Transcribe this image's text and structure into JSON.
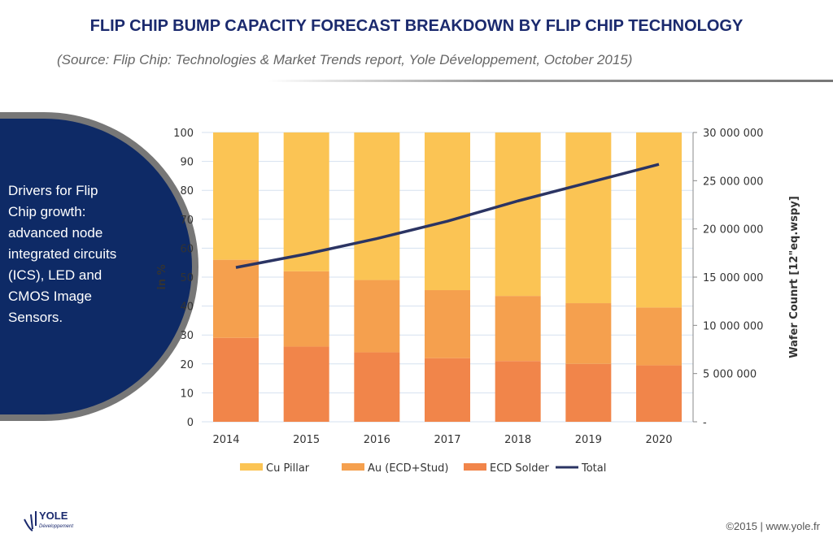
{
  "title": "FLIP CHIP BUMP CAPACITY FORECAST BREAKDOWN BY FLIP CHIP TECHNOLOGY",
  "subtitle": "(Source: Flip Chip: Technologies & Market Trends report, Yole Développement, October 2015)",
  "drivers": "Drivers for Flip Chip growth: advanced node integrated circuits (ICS), LED and CMOS Image Sensors.",
  "logo": {
    "text": "YOLE",
    "sub": "Développement"
  },
  "footer": "©2015 | www.yole.fr",
  "colors": {
    "title": "#1b2a6e",
    "panel": "#0e2a66",
    "cu": "#fbc454",
    "au": "#f5a04e",
    "ecd": "#f1854a",
    "total": "#2b3463"
  },
  "chart_data": {
    "type": "bar",
    "stacked": true,
    "categories": [
      "2014",
      "2015",
      "2016",
      "2017",
      "2018",
      "2019",
      "2020"
    ],
    "ylabel": "in %",
    "ylim": [
      0,
      100
    ],
    "yticks": [
      "0",
      "10",
      "20",
      "30",
      "40",
      "50",
      "60",
      "70",
      "80",
      "90",
      "100"
    ],
    "y2label": "Wafer Counrt [12\"eq.wspy]",
    "y2lim": [
      0,
      30000000
    ],
    "y2ticks": [
      "-",
      "5 000 000",
      "10 000 000",
      "15 000 000",
      "20 000 000",
      "25 000 000",
      "30 000 000"
    ],
    "grid": true,
    "legend_position": "bottom",
    "series": [
      {
        "name": "ECD Solder",
        "axis": "left",
        "values": [
          29,
          26,
          24,
          22,
          21,
          20,
          19.5
        ]
      },
      {
        "name": "Au (ECD+Stud)",
        "axis": "left",
        "values": [
          27,
          26,
          25,
          23.5,
          22.5,
          21,
          20
        ]
      },
      {
        "name": "Cu Pillar",
        "axis": "left",
        "values": [
          44,
          48,
          51,
          54.5,
          56.5,
          59,
          60.5
        ]
      },
      {
        "name": "Total",
        "type": "line",
        "axis": "right",
        "values": [
          16000000,
          17400000,
          19000000,
          20800000,
          22900000,
          24800000,
          26700000
        ]
      }
    ],
    "legend": [
      "Cu Pillar",
      "Au (ECD+Stud)",
      "ECD Solder",
      "Total"
    ]
  }
}
